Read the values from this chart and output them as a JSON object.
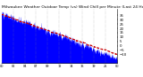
{
  "title": "Milwaukee Weather Outdoor Temp (vs) Wind Chill per Minute (Last 24 Hours)",
  "title_fontsize": 3.2,
  "title_color": "#000000",
  "bg_color": "#ffffff",
  "plot_bg_color": "#ffffff",
  "grid_color": "#888888",
  "n_points": 1440,
  "temp_start": 38,
  "temp_end": -14,
  "wind_chill_start": 36,
  "wind_chill_end": -10,
  "blue_color": "#0000ff",
  "red_color": "#cc0000",
  "y_ticks": [
    35,
    30,
    25,
    20,
    15,
    10,
    5,
    0,
    -5,
    -10
  ],
  "ylim": [
    -20,
    42
  ],
  "xlim": [
    0,
    1440
  ],
  "ylabel_fontsize": 2.8,
  "xlabel_fontsize": 2.5,
  "n_xticks": 9,
  "noise_scale_temp": 5.0,
  "autocorr": 0.75
}
